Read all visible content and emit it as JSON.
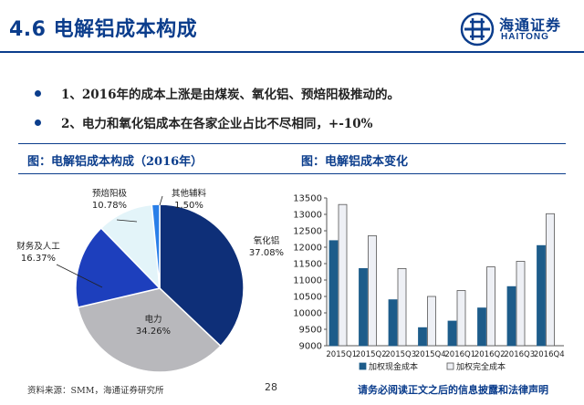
{
  "header": {
    "title": "4.6 电解铝成本构成",
    "logo_cn": "海通证券",
    "logo_en": "HAITONG"
  },
  "bullets": [
    "1、2016年的成本上涨是由煤炭、氧化铝、预焙阳极推动的。",
    "2、电力和氧化铝成本在各家企业占比不尽相同，+-10%"
  ],
  "left_chart_title": "图：电解铝成本构成（2016年）",
  "right_chart_title": "图：电解铝成本变化",
  "footer": {
    "source": "资料来源：SMM，海通证券研究所",
    "page": "28",
    "disclaimer": "请务必阅读正文之后的信息披露和法律声明"
  },
  "colors": {
    "brand_blue": "#0b3d8c",
    "navy": "#0e2f78",
    "gray": "#b8b8bc",
    "royal": "#1d3fbd",
    "light_cyan": "#e3f4f9",
    "bright_blue": "#2a7fe8",
    "teal": "#1d5c8a",
    "pale": "#eef0f5"
  },
  "chart_data": [
    {
      "type": "pie",
      "title": "图：电解铝成本构成（2016年）",
      "slices": [
        {
          "label": "氧化铝",
          "value": 37.08,
          "pct": "37.08%",
          "color": "#0e2f78"
        },
        {
          "label": "电力",
          "value": 34.26,
          "pct": "34.26%",
          "color": "#b8b8bc"
        },
        {
          "label": "财务及人工",
          "value": 16.37,
          "pct": "16.37%",
          "color": "#1d3fbd"
        },
        {
          "label": "预焙阳极",
          "value": 10.78,
          "pct": "10.78%",
          "color": "#e3f4f9"
        },
        {
          "label": "其他辅料",
          "value": 1.5,
          "pct": "1.50%",
          "color": "#2a7fe8"
        }
      ]
    },
    {
      "type": "bar",
      "title": "图：电解铝成本变化",
      "categories": [
        "2015Q1",
        "2015Q2",
        "2015Q3",
        "2015Q4",
        "2016Q1",
        "2016Q2",
        "2016Q3",
        "2016Q4"
      ],
      "series": [
        {
          "name": "加权现金成本",
          "color": "#1d5c8a",
          "values": [
            12200,
            11350,
            10400,
            9550,
            9750,
            10150,
            10800,
            12050
          ]
        },
        {
          "name": "加权完全成本",
          "color": "#eef0f5",
          "values": [
            13300,
            12350,
            11350,
            10500,
            10680,
            11400,
            11570,
            13020
          ]
        }
      ],
      "ylim": [
        9000,
        13500
      ],
      "yticks": [
        9000,
        9500,
        10000,
        10500,
        11000,
        11500,
        12000,
        12500,
        13000,
        13500
      ]
    }
  ]
}
